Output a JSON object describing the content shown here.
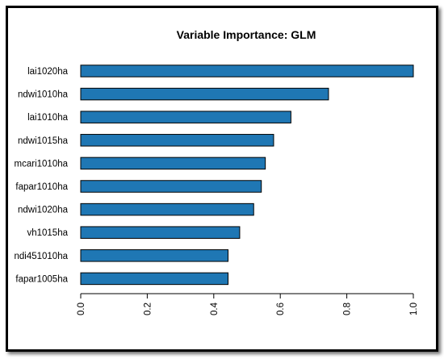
{
  "chart_data": {
    "type": "bar",
    "orientation": "horizontal",
    "title": "Variable Importance: GLM",
    "xlabel": "",
    "ylabel": "",
    "categories": [
      "lai1020ha",
      "ndwi1010ha",
      "lai1010ha",
      "ndwi1015ha",
      "mcari1010ha",
      "fapar1010ha",
      "ndwi1020ha",
      "vh1015ha",
      "ndi451010ha",
      "fapar1005ha"
    ],
    "values": [
      1.0,
      0.745,
      0.632,
      0.58,
      0.555,
      0.543,
      0.52,
      0.478,
      0.443,
      0.443
    ],
    "xlim": [
      0,
      1
    ],
    "xticks": [
      "0.0",
      "0.2",
      "0.4",
      "0.6",
      "0.8",
      "1.0"
    ],
    "grid": false,
    "legend": "none",
    "bar_color": "#1f77b4"
  }
}
